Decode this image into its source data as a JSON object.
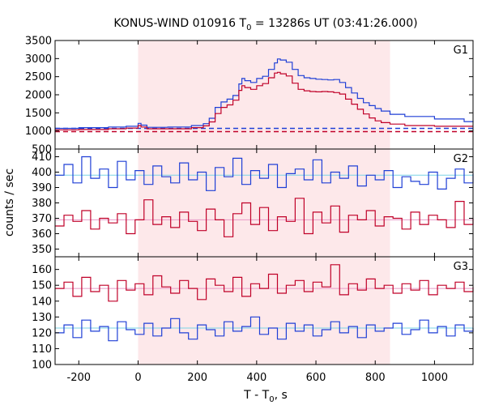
{
  "chart_data": {
    "type": "line",
    "title_main": "KONUS-WIND 010916 T",
    "title_sub": "0",
    "title_rest": " = 13286s UT (03:41:26.000)",
    "xlabel_main": "T - T",
    "xlabel_sub": "0",
    "xlabel_rest": ", s",
    "ylabel": "counts / sec",
    "xlim": [
      -280,
      1130
    ],
    "xticks": [
      -200,
      0,
      200,
      400,
      600,
      800,
      1000
    ],
    "highlight": {
      "x_start": 0,
      "x_end": 850,
      "color": "#fde8ea"
    },
    "colors": {
      "blue": "#1f3fd6",
      "red": "#c00028",
      "bg_blue": "#7ad3e6",
      "bg_red": "#e89ac8",
      "cyan": "#3ec6e0"
    },
    "panels": [
      {
        "label": "G1",
        "ylim": [
          500,
          3500
        ],
        "yticks": [
          500,
          1000,
          1500,
          2000,
          2500,
          3000,
          3500
        ],
        "background": {
          "blue": 1070,
          "red": 980
        },
        "series": [
          {
            "color": "blue",
            "x": [
              -280,
              -200,
              -100,
              -40,
              0,
              10,
              30,
              100,
              180,
              220,
              240,
              260,
              280,
              300,
              320,
              340,
              350,
              360,
              380,
              400,
              420,
              440,
              460,
              470,
              480,
              500,
              520,
              540,
              560,
              580,
              600,
              620,
              640,
              660,
              680,
              700,
              720,
              740,
              760,
              780,
              800,
              820,
              850,
              900,
              1000,
              1100,
              1130
            ],
            "y": [
              1070,
              1090,
              1110,
              1130,
              1210,
              1160,
              1100,
              1110,
              1150,
              1200,
              1350,
              1650,
              1800,
              1880,
              1980,
              2300,
              2450,
              2390,
              2340,
              2450,
              2510,
              2700,
              2880,
              2990,
              2960,
              2900,
              2700,
              2530,
              2470,
              2450,
              2430,
              2420,
              2410,
              2420,
              2340,
              2200,
              2050,
              1900,
              1780,
              1700,
              1620,
              1550,
              1460,
              1400,
              1330,
              1260,
              1240
            ]
          },
          {
            "color": "red",
            "x": [
              -280,
              -200,
              -100,
              -40,
              0,
              10,
              30,
              100,
              180,
              220,
              240,
              260,
              280,
              300,
              320,
              340,
              350,
              360,
              380,
              400,
              420,
              440,
              460,
              470,
              480,
              500,
              520,
              540,
              560,
              580,
              600,
              620,
              640,
              660,
              680,
              700,
              720,
              740,
              760,
              780,
              800,
              820,
              850,
              900,
              1000
            ],
            "y": [
              1030,
              1040,
              1060,
              1080,
              1150,
              1110,
              1060,
              1060,
              1090,
              1140,
              1250,
              1480,
              1650,
              1720,
              1850,
              2120,
              2250,
              2200,
              2150,
              2250,
              2310,
              2470,
              2600,
              2620,
              2580,
              2520,
              2320,
              2150,
              2110,
              2090,
              2080,
              2090,
              2080,
              2060,
              2020,
              1880,
              1740,
              1600,
              1470,
              1360,
              1280,
              1230,
              1190,
              1150,
              1130
            ]
          }
        ]
      },
      {
        "label": "G2",
        "ylim": [
          345,
          415
        ],
        "yticks": [
          350,
          360,
          370,
          380,
          390,
          400,
          410
        ],
        "background": {
          "blue": 398,
          "red": 369
        },
        "series": [
          {
            "color": "blue",
            "x": [
              -280,
              -250,
              -220,
              -190,
              -160,
              -130,
              -100,
              -70,
              -40,
              -10,
              20,
              50,
              80,
              110,
              140,
              170,
              200,
              230,
              260,
              290,
              320,
              350,
              380,
              410,
              440,
              470,
              500,
              530,
              560,
              590,
              620,
              650,
              680,
              710,
              740,
              770,
              800,
              830,
              860,
              890,
              920,
              950,
              980,
              1010,
              1040,
              1070,
              1100,
              1130
            ],
            "y": [
              398,
              405,
              393,
              410,
              396,
              402,
              390,
              407,
              395,
              401,
              392,
              404,
              397,
              393,
              406,
              395,
              400,
              388,
              403,
              397,
              409,
              392,
              401,
              396,
              405,
              390,
              399,
              402,
              395,
              408,
              393,
              400,
              396,
              404,
              391,
              398,
              395,
              401,
              390,
              397,
              394,
              392,
              400,
              389,
              396,
              402,
              393,
              399
            ]
          },
          {
            "color": "red",
            "x": [
              -280,
              -250,
              -220,
              -190,
              -160,
              -130,
              -100,
              -70,
              -40,
              -10,
              20,
              50,
              80,
              110,
              140,
              170,
              200,
              230,
              260,
              290,
              320,
              350,
              380,
              410,
              440,
              470,
              500,
              530,
              560,
              590,
              620,
              650,
              680,
              710,
              740,
              770,
              800,
              830,
              860,
              890,
              920,
              950,
              980,
              1010,
              1040,
              1070,
              1100,
              1130
            ],
            "y": [
              365,
              372,
              368,
              375,
              363,
              370,
              367,
              373,
              360,
              369,
              382,
              366,
              371,
              364,
              374,
              368,
              362,
              376,
              369,
              358,
              373,
              380,
              366,
              377,
              362,
              371,
              368,
              383,
              360,
              374,
              367,
              378,
              361,
              372,
              369,
              375,
              365,
              371,
              370,
              363,
              374,
              366,
              372,
              369,
              364,
              381,
              366,
              370
            ]
          }
        ]
      },
      {
        "label": "G3",
        "ylim": [
          100,
          168
        ],
        "yticks": [
          100,
          110,
          120,
          130,
          140,
          150,
          160
        ],
        "background": {
          "blue": 123,
          "red": 148
        },
        "series": [
          {
            "color": "red",
            "x": [
              -280,
              -250,
              -220,
              -190,
              -160,
              -130,
              -100,
              -70,
              -40,
              -10,
              20,
              50,
              80,
              110,
              140,
              170,
              200,
              230,
              260,
              290,
              320,
              350,
              380,
              410,
              440,
              470,
              500,
              530,
              560,
              590,
              620,
              650,
              680,
              710,
              740,
              770,
              800,
              830,
              860,
              890,
              920,
              950,
              980,
              1010,
              1040,
              1070,
              1100,
              1130
            ],
            "y": [
              148,
              152,
              143,
              155,
              146,
              150,
              140,
              153,
              147,
              151,
              144,
              156,
              149,
              145,
              153,
              148,
              141,
              154,
              150,
              146,
              155,
              143,
              151,
              148,
              157,
              145,
              150,
              153,
              146,
              152,
              149,
              163,
              144,
              151,
              147,
              154,
              148,
              150,
              145,
              151,
              147,
              153,
              144,
              150,
              148,
              152,
              146,
              149
            ]
          },
          {
            "color": "blue",
            "x": [
              -280,
              -250,
              -220,
              -190,
              -160,
              -130,
              -100,
              -70,
              -40,
              -10,
              20,
              50,
              80,
              110,
              140,
              170,
              200,
              230,
              260,
              290,
              320,
              350,
              380,
              410,
              440,
              470,
              500,
              530,
              560,
              590,
              620,
              650,
              680,
              710,
              740,
              770,
              800,
              830,
              860,
              890,
              920,
              950,
              980,
              1010,
              1040,
              1070,
              1100,
              1130
            ],
            "y": [
              120,
              125,
              117,
              128,
              121,
              124,
              115,
              127,
              122,
              119,
              126,
              118,
              123,
              129,
              120,
              116,
              125,
              122,
              118,
              127,
              121,
              124,
              130,
              119,
              123,
              116,
              126,
              121,
              125,
              118,
              122,
              127,
              120,
              124,
              117,
              125,
              121,
              123,
              126,
              119,
              122,
              128,
              120,
              124,
              118,
              125,
              121,
              123
            ]
          }
        ]
      }
    ]
  }
}
